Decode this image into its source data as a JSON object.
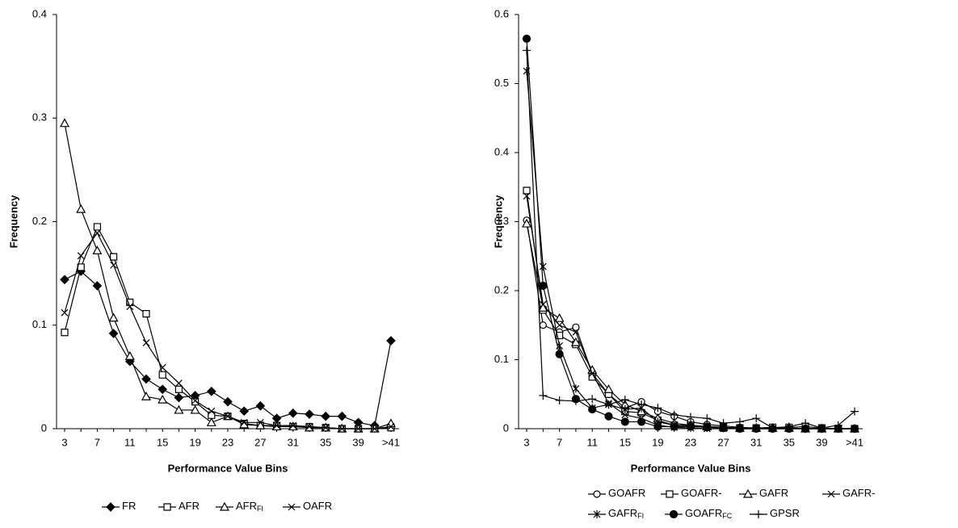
{
  "chart_data": [
    {
      "type": "line",
      "xlabel": "Performance Value Bins",
      "ylabel": "Frequency",
      "categories": [
        "3",
        null,
        "7",
        null,
        "11",
        null,
        "15",
        null,
        "19",
        null,
        "23",
        null,
        "27",
        null,
        "31",
        null,
        "35",
        null,
        "39",
        null,
        ">41"
      ],
      "ylim": [
        0,
        0.4
      ],
      "yticks": [
        0,
        0.1,
        0.2,
        0.3,
        0.4
      ],
      "series": [
        {
          "name": "FR",
          "marker": "diamond",
          "color": "#000000",
          "values": [
            0.144,
            0.152,
            0.138,
            0.092,
            0.065,
            0.048,
            0.038,
            0.03,
            0.032,
            0.036,
            0.026,
            0.017,
            0.022,
            0.01,
            0.015,
            0.014,
            0.012,
            0.012,
            0.006,
            0.003,
            0.085
          ]
        },
        {
          "name": "AFR",
          "marker": "square",
          "color": "#000000",
          "values": [
            0.093,
            0.156,
            0.195,
            0.166,
            0.122,
            0.111,
            0.052,
            0.038,
            0.026,
            0.013,
            0.012,
            0.005,
            0.003,
            0.003,
            0.002,
            0.002,
            0.001,
            0,
            0,
            0,
            0.001
          ]
        },
        {
          "name": "AFR",
          "subscript": "FI",
          "marker": "triangle",
          "color": "#000000",
          "values": [
            0.295,
            0.212,
            0.172,
            0.107,
            0.07,
            0.031,
            0.028,
            0.018,
            0.018,
            0.006,
            0.012,
            0.004,
            0.003,
            0.002,
            0.002,
            0.001,
            0.001,
            0,
            0,
            0,
            0.005
          ]
        },
        {
          "name": "OAFR",
          "marker": "x",
          "color": "#000000",
          "values": [
            0.112,
            0.167,
            0.189,
            0.158,
            0.118,
            0.083,
            0.059,
            0.044,
            0.027,
            0.017,
            0.012,
            0.006,
            0.006,
            0.003,
            0.003,
            0.002,
            0.001,
            0,
            0,
            0,
            0.002
          ]
        }
      ]
    },
    {
      "type": "line",
      "xlabel": "Performance Value Bins",
      "ylabel": "Frequency",
      "categories": [
        "3",
        null,
        "7",
        null,
        "11",
        null,
        "15",
        null,
        "19",
        null,
        "23",
        null,
        "27",
        null,
        "31",
        null,
        "35",
        null,
        "39",
        null,
        ">41"
      ],
      "ylim": [
        0,
        0.6
      ],
      "yticks": [
        0,
        0.1,
        0.2,
        0.3,
        0.4,
        0.5,
        0.6
      ],
      "series": [
        {
          "name": "GOAFR",
          "marker": "circle-open",
          "color": "#000000",
          "values": [
            0.302,
            0.15,
            0.14,
            0.147,
            0.08,
            0.05,
            0.03,
            0.039,
            0.025,
            0.018,
            0.01,
            0.006,
            0.004,
            0.002,
            0.001,
            0.001,
            0.001,
            0,
            0,
            0,
            0
          ]
        },
        {
          "name": "GOAFR-",
          "marker": "square",
          "color": "#000000",
          "values": [
            0.345,
            0.172,
            0.135,
            0.122,
            0.075,
            0.05,
            0.025,
            0.023,
            0.012,
            0.005,
            0.005,
            0.003,
            0.002,
            0.001,
            0.001,
            0.002,
            0.002,
            0.003,
            0.001,
            0,
            0
          ]
        },
        {
          "name": "GAFR",
          "marker": "triangle",
          "color": "#000000",
          "values": [
            0.297,
            0.175,
            0.16,
            0.125,
            0.085,
            0.057,
            0.035,
            0.025,
            0.015,
            0.008,
            0.005,
            0.003,
            0.002,
            0.001,
            0.001,
            0.001,
            0.001,
            0,
            0,
            0,
            0
          ]
        },
        {
          "name": "GAFR-",
          "marker": "x",
          "color": "#000000",
          "values": [
            0.337,
            0.18,
            0.15,
            0.14,
            0.08,
            0.037,
            0.02,
            0.015,
            0.005,
            0.002,
            0.001,
            0,
            0,
            0,
            0,
            0,
            0,
            0,
            0,
            0,
            0
          ]
        },
        {
          "name": "GAFR",
          "subscript": "FI",
          "marker": "star",
          "color": "#000000",
          "values": [
            0.518,
            0.235,
            0.12,
            0.058,
            0.03,
            0.035,
            0.028,
            0.03,
            0.01,
            0.005,
            0.004,
            0.002,
            0.001,
            0,
            0,
            0,
            0,
            0,
            0,
            0,
            0
          ]
        },
        {
          "name": "GOAFR",
          "subscript": "FC",
          "marker": "circle-filled",
          "color": "#000000",
          "values": [
            0.565,
            0.207,
            0.108,
            0.043,
            0.028,
            0.018,
            0.01,
            0.01,
            0.003,
            0.003,
            0.003,
            0.002,
            0.001,
            0,
            0,
            0,
            0,
            0,
            0,
            0,
            0
          ]
        },
        {
          "name": "GPSR",
          "marker": "plus",
          "color": "#000000",
          "values": [
            0.548,
            0.048,
            0.041,
            0.04,
            0.043,
            0.035,
            0.042,
            0.035,
            0.03,
            0.02,
            0.017,
            0.015,
            0.008,
            0.01,
            0.015,
            0.001,
            0.003,
            0.008,
            0.001,
            0.005,
            0.025
          ]
        }
      ]
    }
  ]
}
